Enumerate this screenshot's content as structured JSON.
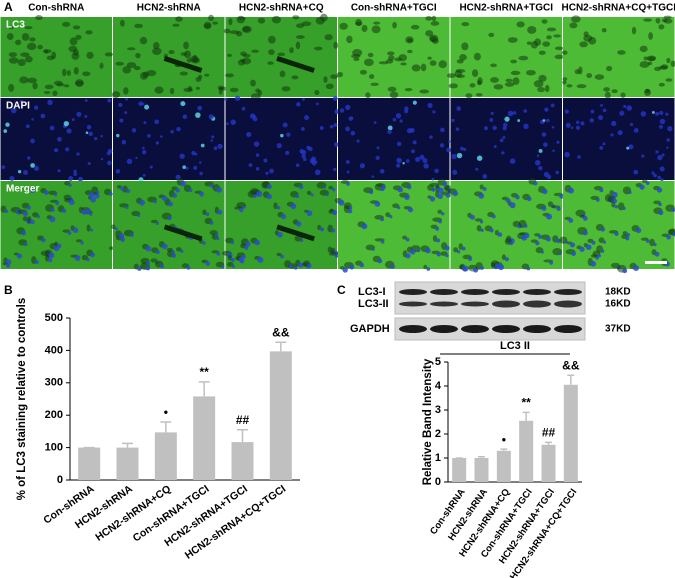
{
  "panel_labels": [
    "A",
    "B",
    "C"
  ],
  "panel_a": {
    "columns": [
      "Con-shRNA",
      "HCN2-shRNA",
      "HCN2-shRNA+CQ",
      "Con-shRNA+TGCI",
      "HCN2-shRNA+TGCI",
      "HCN2-shRNA+CQ+TGCI"
    ],
    "rows": [
      "LC3",
      "DAPI",
      "Merger"
    ]
  },
  "blot": {
    "bands": [
      "LC3-I",
      "LC3-II"
    ],
    "band_sizes": [
      "18KD",
      "16KD"
    ],
    "control": "GAPDH",
    "control_size": "37KD"
  },
  "chart_data": [
    {
      "type": "bar",
      "y_label": "% of LC3 staining relative to controls",
      "categories": [
        "Con-shRNA",
        "HCN2-shRNA",
        "HCN2-shRNA+CQ",
        "Con-shRNA+TGCI",
        "HCN2-shRNA+TGCI",
        "HCN2-shRNA+CQ+TGCI"
      ],
      "values": [
        100,
        100,
        147,
        258,
        117,
        397
      ],
      "errors": [
        0,
        13,
        32,
        45,
        38,
        28
      ],
      "annotations": [
        null,
        null,
        "•",
        "**",
        "##",
        "&&"
      ],
      "color": "#c0c0c0",
      "ylim": [
        0,
        500
      ],
      "yticks": [
        0,
        100,
        200,
        300,
        400,
        500
      ]
    },
    {
      "type": "bar",
      "title": "LC3 II",
      "y_label": "Relative Band Intensity",
      "categories": [
        "Con-shRNA",
        "HCN2-shRNA",
        "HCN2-shRNA+CQ",
        "Con-shRNA+TGCI",
        "HCN2-shRNA+TGCI",
        "HCN2-shRNA+CQ+TGCI"
      ],
      "values": [
        1.0,
        1.0,
        1.3,
        2.55,
        1.55,
        4.05
      ],
      "errors": [
        0,
        0.05,
        0.07,
        0.35,
        0.1,
        0.4
      ],
      "annotations": [
        null,
        null,
        "•",
        "**",
        "##",
        "&&"
      ],
      "color": "#c0c0c0",
      "ylim": [
        0,
        5
      ],
      "yticks": [
        0,
        1,
        2,
        3,
        4,
        5
      ]
    }
  ]
}
